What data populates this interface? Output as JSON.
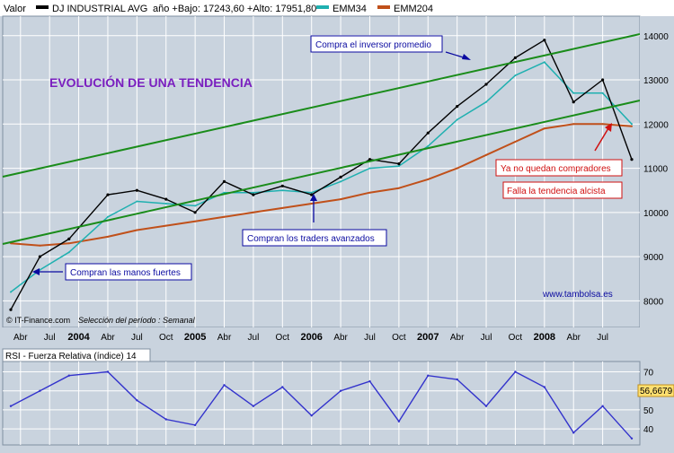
{
  "header": {
    "valor_label": "Valor",
    "instrument": "DJ INDUSTRIAL AVG",
    "range_text": "año +Bajo: 17243,60 +Alto: 17951,80",
    "legend": [
      {
        "name": "EMM34",
        "color": "#1fb0b0"
      },
      {
        "name": "EMM204",
        "color": "#c0501a"
      }
    ]
  },
  "main_panel": {
    "title": "EVOLUCIÓN DE UNA TENDENCIA",
    "title_color": "#7a1fbf",
    "annotations": {
      "inversor": "Compra el inversor promedio",
      "traders": "Compran los traders avanzados",
      "manos": "Compran las manos fuertes",
      "no_compradores": "Ya no quedan compradores",
      "falla": "Falla la tendencia alcista"
    },
    "watermark": "www.tambolsa.es",
    "source": "© IT-Finance.com",
    "period_note": "Selección del período : Semanal",
    "y_ticks": [
      "14000",
      "13000",
      "12000",
      "11000",
      "10000",
      "9000",
      "8000"
    ],
    "x_tick_labels": [
      "Abr",
      "Jul",
      "2004",
      "Abr",
      "Jul",
      "Oct",
      "2005",
      "Abr",
      "Jul",
      "Oct",
      "2006",
      "Abr",
      "Jul",
      "Oct",
      "2007",
      "Abr",
      "Jul",
      "Oct",
      "2008",
      "Abr",
      "Jul"
    ]
  },
  "rsi_panel": {
    "title": "RSI - Fuerza Relativa (índice) 14",
    "y_ticks": [
      "70",
      "60",
      "50",
      "40"
    ],
    "last_value": "56,6679"
  },
  "colors": {
    "background": "#c9d3de",
    "grid": "#ffffff",
    "price": "#000000",
    "trend": "#1a8c1a",
    "ema34": "#1fb0b0",
    "ema204": "#c0501a",
    "rsi": "#3333cc",
    "annotation_blue": "#0a0aa0",
    "annotation_red": "#d01010"
  },
  "chart_data": [
    {
      "type": "line",
      "series": [
        {
          "name": "DJ INDUSTRIAL AVG",
          "x": [
            "2003-03",
            "2003-06",
            "2003-09",
            "2004-01",
            "2004-04",
            "2004-07",
            "2004-10",
            "2005-01",
            "2005-04",
            "2005-07",
            "2005-10",
            "2006-01",
            "2006-04",
            "2006-07",
            "2006-10",
            "2007-01",
            "2007-04",
            "2007-07",
            "2007-10",
            "2008-01",
            "2008-04",
            "2008-07"
          ],
          "values": [
            7800,
            9000,
            9400,
            10400,
            10500,
            10300,
            10000,
            10700,
            10400,
            10600,
            10400,
            10800,
            11200,
            11100,
            11800,
            12400,
            12900,
            13500,
            13900,
            12500,
            13000,
            11200
          ]
        },
        {
          "name": "EMM34",
          "x": [
            "2003-03",
            "2003-06",
            "2003-09",
            "2004-01",
            "2004-04",
            "2004-07",
            "2004-10",
            "2005-01",
            "2005-04",
            "2005-07",
            "2005-10",
            "2006-01",
            "2006-04",
            "2006-07",
            "2006-10",
            "2007-01",
            "2007-04",
            "2007-07",
            "2007-10",
            "2008-01",
            "2008-04",
            "2008-07"
          ],
          "values": [
            8200,
            8700,
            9100,
            9900,
            10250,
            10200,
            10150,
            10450,
            10450,
            10500,
            10450,
            10700,
            11000,
            11050,
            11500,
            12100,
            12500,
            13100,
            13400,
            12700,
            12700,
            12000
          ]
        },
        {
          "name": "EMM204",
          "x": [
            "2003-03",
            "2003-06",
            "2003-09",
            "2004-01",
            "2004-04",
            "2004-07",
            "2004-10",
            "2005-01",
            "2005-04",
            "2005-07",
            "2005-10",
            "2006-01",
            "2006-04",
            "2006-07",
            "2006-10",
            "2007-01",
            "2007-04",
            "2007-07",
            "2007-10",
            "2008-01",
            "2008-04",
            "2008-07"
          ],
          "values": [
            9300,
            9250,
            9300,
            9450,
            9600,
            9700,
            9800,
            9900,
            10000,
            10100,
            10200,
            10300,
            10450,
            10550,
            10750,
            11000,
            11300,
            11600,
            11900,
            12000,
            12000,
            11950
          ]
        }
      ],
      "ylim": [
        7500,
        14300
      ],
      "xlabel": "",
      "ylabel": ""
    },
    {
      "type": "line",
      "series": [
        {
          "name": "RSI - Fuerza Relativa (índice) 14",
          "x": [
            "2003-03",
            "2003-06",
            "2003-09",
            "2004-01",
            "2004-04",
            "2004-07",
            "2004-10",
            "2005-01",
            "2005-04",
            "2005-07",
            "2005-10",
            "2006-01",
            "2006-04",
            "2006-07",
            "2006-10",
            "2007-01",
            "2007-04",
            "2007-07",
            "2007-10",
            "2008-01",
            "2008-04",
            "2008-07"
          ],
          "values": [
            52,
            60,
            68,
            70,
            55,
            45,
            42,
            63,
            52,
            62,
            47,
            60,
            65,
            44,
            68,
            66,
            52,
            70,
            62,
            38,
            52,
            35
          ]
        }
      ],
      "ylim": [
        33,
        74
      ]
    }
  ]
}
